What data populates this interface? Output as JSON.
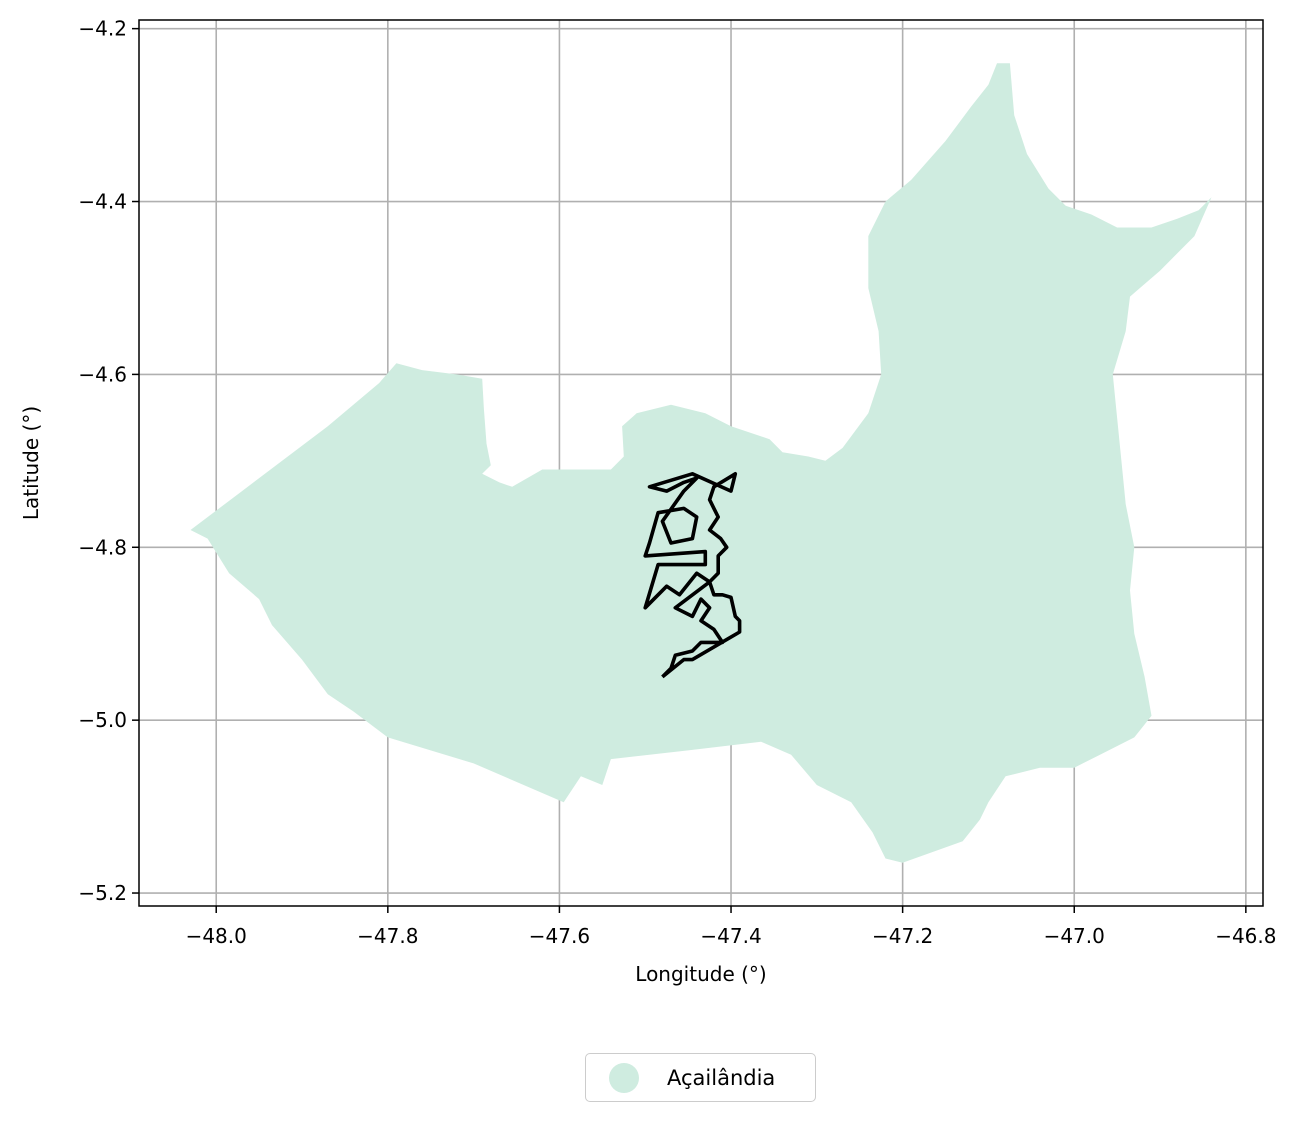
{
  "chart_data": {
    "type": "map",
    "xlabel": "Longitude (°)",
    "ylabel": "Latitude (°)",
    "xlim": [
      -48.09,
      -46.78
    ],
    "ylim": [
      -5.215,
      -4.19
    ],
    "x_ticks": [
      -48.0,
      -47.8,
      -47.6,
      -47.4,
      -47.2,
      -47.0,
      -46.8
    ],
    "x_tick_labels": [
      "−48.0",
      "−47.8",
      "−47.6",
      "−47.4",
      "−47.2",
      "−47.0",
      "−46.8"
    ],
    "y_ticks": [
      -4.2,
      -4.4,
      -4.6,
      -4.8,
      -5.0,
      -5.2
    ],
    "y_tick_labels": [
      "−4.2",
      "−4.4",
      "−4.6",
      "−4.8",
      "−5.0",
      "−5.2"
    ],
    "grid": true,
    "legend": {
      "placement": "bottom-center",
      "entries": [
        {
          "label": "Açailândia",
          "color": "#cfece0"
        }
      ]
    },
    "region": {
      "name": "Açailândia",
      "color": "#cfece0",
      "polygon": [
        [
          -48.03,
          -4.78
        ],
        [
          -47.97,
          -4.735
        ],
        [
          -47.87,
          -4.66
        ],
        [
          -47.81,
          -4.61
        ],
        [
          -47.79,
          -4.587
        ],
        [
          -47.76,
          -4.595
        ],
        [
          -47.72,
          -4.6
        ],
        [
          -47.69,
          -4.605
        ],
        [
          -47.688,
          -4.64
        ],
        [
          -47.685,
          -4.68
        ],
        [
          -47.68,
          -4.705
        ],
        [
          -47.69,
          -4.715
        ],
        [
          -47.67,
          -4.725
        ],
        [
          -47.655,
          -4.73
        ],
        [
          -47.62,
          -4.71
        ],
        [
          -47.58,
          -4.71
        ],
        [
          -47.54,
          -4.71
        ],
        [
          -47.525,
          -4.695
        ],
        [
          -47.527,
          -4.66
        ],
        [
          -47.51,
          -4.645
        ],
        [
          -47.47,
          -4.635
        ],
        [
          -47.43,
          -4.645
        ],
        [
          -47.4,
          -4.66
        ],
        [
          -47.355,
          -4.675
        ],
        [
          -47.34,
          -4.69
        ],
        [
          -47.31,
          -4.695
        ],
        [
          -47.29,
          -4.7
        ],
        [
          -47.27,
          -4.685
        ],
        [
          -47.24,
          -4.645
        ],
        [
          -47.225,
          -4.6
        ],
        [
          -47.228,
          -4.55
        ],
        [
          -47.24,
          -4.5
        ],
        [
          -47.24,
          -4.44
        ],
        [
          -47.22,
          -4.4
        ],
        [
          -47.19,
          -4.375
        ],
        [
          -47.15,
          -4.33
        ],
        [
          -47.12,
          -4.29
        ],
        [
          -47.1,
          -4.265
        ],
        [
          -47.09,
          -4.24
        ],
        [
          -47.075,
          -4.24
        ],
        [
          -47.07,
          -4.3
        ],
        [
          -47.055,
          -4.345
        ],
        [
          -47.03,
          -4.385
        ],
        [
          -47.01,
          -4.405
        ],
        [
          -46.98,
          -4.415
        ],
        [
          -46.95,
          -4.43
        ],
        [
          -46.91,
          -4.43
        ],
        [
          -46.88,
          -4.42
        ],
        [
          -46.855,
          -4.41
        ],
        [
          -46.84,
          -4.395
        ],
        [
          -46.86,
          -4.44
        ],
        [
          -46.9,
          -4.48
        ],
        [
          -46.935,
          -4.51
        ],
        [
          -46.94,
          -4.55
        ],
        [
          -46.955,
          -4.6
        ],
        [
          -46.95,
          -4.65
        ],
        [
          -46.945,
          -4.7
        ],
        [
          -46.94,
          -4.75
        ],
        [
          -46.93,
          -4.8
        ],
        [
          -46.935,
          -4.85
        ],
        [
          -46.93,
          -4.9
        ],
        [
          -46.918,
          -4.95
        ],
        [
          -46.91,
          -4.995
        ],
        [
          -46.93,
          -5.02
        ],
        [
          -46.97,
          -5.04
        ],
        [
          -47.0,
          -5.055
        ],
        [
          -47.04,
          -5.055
        ],
        [
          -47.08,
          -5.065
        ],
        [
          -47.1,
          -5.095
        ],
        [
          -47.11,
          -5.115
        ],
        [
          -47.13,
          -5.14
        ],
        [
          -47.2,
          -5.165
        ],
        [
          -47.22,
          -5.16
        ],
        [
          -47.235,
          -5.13
        ],
        [
          -47.26,
          -5.095
        ],
        [
          -47.3,
          -5.075
        ],
        [
          -47.33,
          -5.04
        ],
        [
          -47.365,
          -5.025
        ],
        [
          -47.45,
          -5.035
        ],
        [
          -47.54,
          -5.045
        ],
        [
          -47.55,
          -5.075
        ],
        [
          -47.575,
          -5.065
        ],
        [
          -47.595,
          -5.095
        ],
        [
          -47.7,
          -5.05
        ],
        [
          -47.8,
          -5.02
        ],
        [
          -47.84,
          -4.99
        ],
        [
          -47.87,
          -4.97
        ],
        [
          -47.9,
          -4.93
        ],
        [
          -47.935,
          -4.89
        ],
        [
          -47.95,
          -4.86
        ],
        [
          -47.985,
          -4.83
        ],
        [
          -48.01,
          -4.79
        ],
        [
          -48.03,
          -4.78
        ]
      ]
    },
    "outline": {
      "color": "#000000",
      "path": [
        [
          -47.48,
          -4.95
        ],
        [
          -47.455,
          -4.93
        ],
        [
          -47.445,
          -4.93
        ],
        [
          -47.39,
          -4.898
        ],
        [
          -47.39,
          -4.885
        ],
        [
          -47.395,
          -4.88
        ],
        [
          -47.4,
          -4.858
        ],
        [
          -47.41,
          -4.855
        ],
        [
          -47.42,
          -4.855
        ],
        [
          -47.425,
          -4.84
        ],
        [
          -47.415,
          -4.83
        ],
        [
          -47.415,
          -4.81
        ],
        [
          -47.405,
          -4.8
        ],
        [
          -47.412,
          -4.79
        ],
        [
          -47.425,
          -4.78
        ],
        [
          -47.415,
          -4.765
        ],
        [
          -47.42,
          -4.755
        ],
        [
          -47.425,
          -4.745
        ],
        [
          -47.42,
          -4.73
        ],
        [
          -47.395,
          -4.715
        ],
        [
          -47.4,
          -4.735
        ],
        [
          -47.445,
          -4.715
        ],
        [
          -47.495,
          -4.73
        ],
        [
          -47.475,
          -4.735
        ],
        [
          -47.455,
          -4.725
        ],
        [
          -47.44,
          -4.72
        ],
        [
          -47.455,
          -4.735
        ],
        [
          -47.48,
          -4.77
        ],
        [
          -47.47,
          -4.795
        ],
        [
          -47.445,
          -4.79
        ],
        [
          -47.44,
          -4.765
        ],
        [
          -47.455,
          -4.755
        ],
        [
          -47.485,
          -4.76
        ],
        [
          -47.495,
          -4.795
        ],
        [
          -47.5,
          -4.81
        ],
        [
          -47.43,
          -4.805
        ],
        [
          -47.43,
          -4.82
        ],
        [
          -47.485,
          -4.82
        ],
        [
          -47.5,
          -4.87
        ],
        [
          -47.475,
          -4.845
        ],
        [
          -47.46,
          -4.855
        ],
        [
          -47.44,
          -4.83
        ],
        [
          -47.425,
          -4.84
        ],
        [
          -47.465,
          -4.87
        ],
        [
          -47.445,
          -4.88
        ],
        [
          -47.435,
          -4.86
        ],
        [
          -47.425,
          -4.87
        ],
        [
          -47.435,
          -4.885
        ],
        [
          -47.42,
          -4.895
        ],
        [
          -47.41,
          -4.91
        ],
        [
          -47.435,
          -4.91
        ],
        [
          -47.445,
          -4.92
        ],
        [
          -47.465,
          -4.925
        ],
        [
          -47.47,
          -4.94
        ],
        [
          -47.48,
          -4.95
        ]
      ]
    }
  }
}
